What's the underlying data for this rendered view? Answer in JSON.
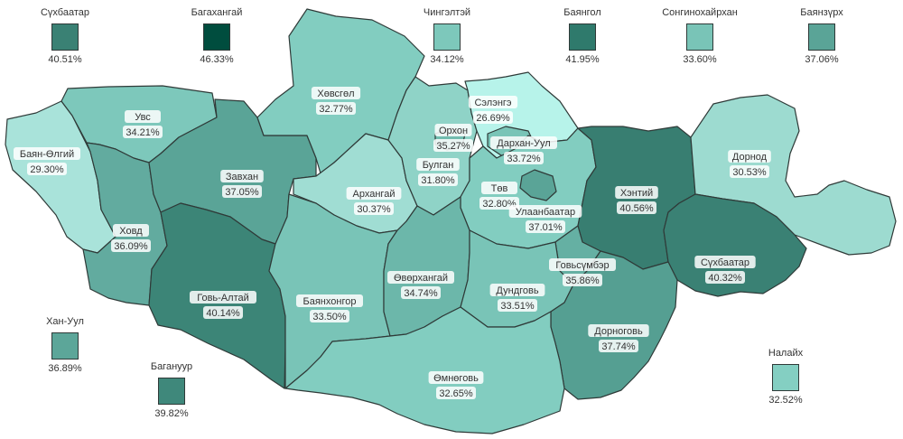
{
  "regions": [
    {
      "id": "bayan-olgii",
      "name": "Баян-Өлгий",
      "value": "29.30%",
      "color": "#a9e3da"
    },
    {
      "id": "uvs",
      "name": "Увс",
      "value": "34.21%",
      "color": "#7dc8bb"
    },
    {
      "id": "khovd",
      "name": "Ховд",
      "value": "36.09%",
      "color": "#62ab9f"
    },
    {
      "id": "zavkhan",
      "name": "Завхан",
      "value": "37.05%",
      "color": "#5aa497"
    },
    {
      "id": "khovsgol",
      "name": "Хөвсгөл",
      "value": "32.77%",
      "color": "#82cdc0"
    },
    {
      "id": "govi-altai",
      "name": "Говь-Алтай",
      "value": "40.14%",
      "color": "#3c8577"
    },
    {
      "id": "arkhangai",
      "name": "Архангай",
      "value": "30.37%",
      "color": "#a0ddd3"
    },
    {
      "id": "bayankhongor",
      "name": "Баянхонгор",
      "value": "33.50%",
      "color": "#79c4b7"
    },
    {
      "id": "bulgan",
      "name": "Булган",
      "value": "31.80%",
      "color": "#8fd3c7"
    },
    {
      "id": "orkhon",
      "name": "Орхон",
      "value": "35.27%",
      "color": "#71bcaf"
    },
    {
      "id": "selenge",
      "name": "Сэлэнгэ",
      "value": "26.69%",
      "color": "#b7f3ea"
    },
    {
      "id": "darkhan-uul",
      "name": "Дархан-Уул",
      "value": "33.72%",
      "color": "#79c4b7"
    },
    {
      "id": "tov",
      "name": "Төв",
      "value": "32.80%",
      "color": "#82cdc0"
    },
    {
      "id": "ulaanbaatar",
      "name": "Улаанбаатар",
      "value": "37.01%",
      "color": "#5aa497"
    },
    {
      "id": "ovorkhangai",
      "name": "Өвөрхангай",
      "value": "34.74%",
      "color": "#6cb7aa"
    },
    {
      "id": "khentii",
      "name": "Хэнтий",
      "value": "40.56%",
      "color": "#387e71"
    },
    {
      "id": "dornod",
      "name": "Дорнод",
      "value": "30.53%",
      "color": "#9ddbd0"
    },
    {
      "id": "sukhbaatar",
      "name": "Сүхбаатар",
      "value": "40.32%",
      "color": "#3a8174"
    },
    {
      "id": "govisumber",
      "name": "Говьсүмбэр",
      "value": "35.86%",
      "color": "#65b0a3"
    },
    {
      "id": "dundgovi",
      "name": "Дундговь",
      "value": "33.51%",
      "color": "#79c4b7"
    },
    {
      "id": "dornogovi",
      "name": "Дорноговь",
      "value": "37.74%",
      "color": "#559f92"
    },
    {
      "id": "omnogovi",
      "name": "Өмнөговь",
      "value": "32.65%",
      "color": "#82cdc0"
    }
  ],
  "legend": [
    {
      "name": "Сүхбаатар",
      "value": "40.51%",
      "color": "#3a8174"
    },
    {
      "name": "Багахангай",
      "value": "46.33%",
      "color": "#004d3e"
    },
    {
      "name": "Чингэлтэй",
      "value": "34.12%",
      "color": "#7dc8bb"
    },
    {
      "name": "Баянгол",
      "value": "41.95%",
      "color": "#2f7a6c"
    },
    {
      "name": "Сонгинохайрхан",
      "value": "33.60%",
      "color": "#79c4b7"
    },
    {
      "name": "Баянзүрх",
      "value": "37.06%",
      "color": "#5aa497"
    },
    {
      "name": "Хан-Уул",
      "value": "36.89%",
      "color": "#5ca699"
    },
    {
      "name": "Багануур",
      "value": "39.82%",
      "color": "#3f887b"
    },
    {
      "name": "Налайх",
      "value": "32.52%",
      "color": "#84cfc2"
    }
  ]
}
